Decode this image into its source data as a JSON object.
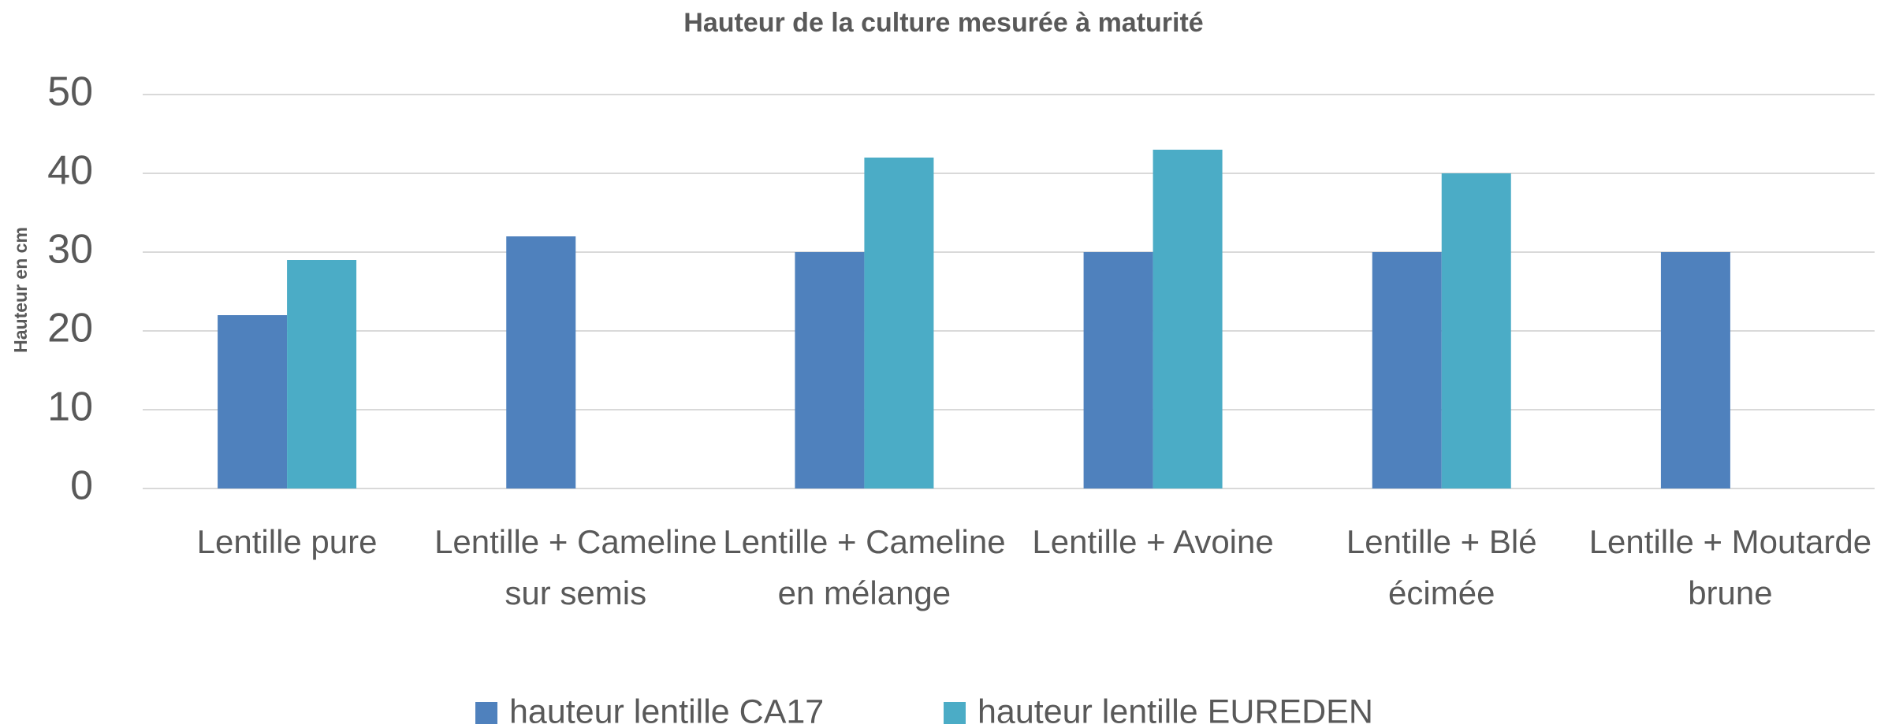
{
  "chart_data": {
    "type": "bar",
    "title": "Hauteur de la culture mesurée à maturité",
    "ylabel": "Hauteur en cm",
    "categories": [
      "Lentille pure",
      "Lentille + Cameline sur semis",
      "Lentille + Cameline en mélange",
      "Lentille + Avoine",
      "Lentille + Blé écimée",
      "Lentille + Moutarde brune"
    ],
    "series": [
      {
        "name": "hauteur lentille CA17",
        "color": "#4f81bd",
        "values": [
          22,
          32,
          30,
          30,
          30,
          30
        ]
      },
      {
        "name": "hauteur lentille EUREDEN",
        "color": "#4bacc6",
        "values": [
          29,
          null,
          42,
          43,
          40,
          null
        ]
      }
    ],
    "ylim": [
      0,
      50
    ],
    "yticks": [
      0,
      10,
      20,
      30,
      40,
      50
    ],
    "grid": true,
    "legend": "bottom"
  }
}
